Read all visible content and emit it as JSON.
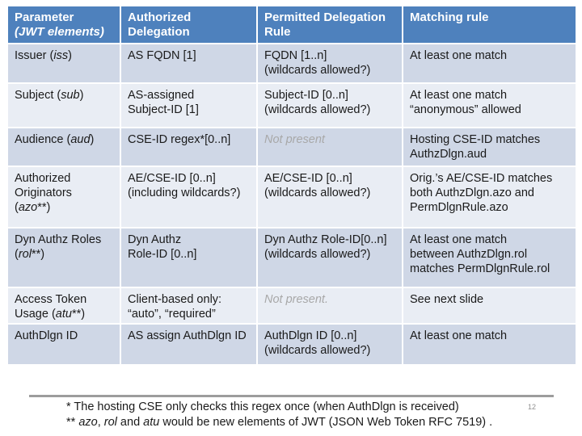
{
  "colors": {
    "header_bg": "#4E81BD",
    "header_text": "#FFFFFF",
    "band_dark": "#CFD7E6",
    "band_light": "#E9EDF4",
    "muted_text": "#A8A8A8",
    "divider_line": "#9C9C9C",
    "body_text": "#1A1A1A"
  },
  "table": {
    "columns": [
      {
        "segments": [
          {
            "t": "Parameter\n"
          },
          {
            "t": "(JWT elements)",
            "i": true
          }
        ]
      },
      {
        "segments": [
          {
            "t": "Authorized\nDelegation"
          }
        ]
      },
      {
        "segments": [
          {
            "t": "Permitted Delegation\nRule"
          }
        ]
      },
      {
        "segments": [
          {
            "t": "Matching rule"
          }
        ]
      }
    ],
    "rows": [
      {
        "cells": [
          {
            "segments": [
              {
                "t": "Issuer ("
              },
              {
                "t": "iss",
                "i": true
              },
              {
                "t": ")"
              }
            ]
          },
          {
            "segments": [
              {
                "t": "AS FQDN [1]"
              }
            ]
          },
          {
            "segments": [
              {
                "t": "FQDN [1..n]\n(wildcards allowed?)"
              }
            ]
          },
          {
            "segments": [
              {
                "t": "At least one match"
              }
            ]
          }
        ]
      },
      {
        "cells": [
          {
            "segments": [
              {
                "t": "Subject  ("
              },
              {
                "t": "sub",
                "i": true
              },
              {
                "t": ")"
              }
            ]
          },
          {
            "segments": [
              {
                "t": "AS-assigned\nSubject-ID [1]"
              }
            ]
          },
          {
            "segments": [
              {
                "t": "Subject-ID [0..n]\n(wildcards allowed?)"
              }
            ]
          },
          {
            "segments": [
              {
                "t": "At least one match\n“anonymous” allowed"
              }
            ]
          }
        ]
      },
      {
        "cells": [
          {
            "segments": [
              {
                "t": "Audience ("
              },
              {
                "t": "aud",
                "i": true
              },
              {
                "t": ")"
              }
            ]
          },
          {
            "segments": [
              {
                "t": "CSE-ID regex*[0..n]"
              }
            ]
          },
          {
            "segments": [
              {
                "t": "Not present"
              }
            ],
            "muted": true
          },
          {
            "segments": [
              {
                "t": "Hosting CSE-ID matches\nAuthzDlgn.aud"
              }
            ]
          }
        ]
      },
      {
        "cells": [
          {
            "segments": [
              {
                "t": "Authorized\nOriginators\n("
              },
              {
                "t": "azo",
                "i": true
              },
              {
                "t": "**)"
              }
            ]
          },
          {
            "segments": [
              {
                "t": "AE/CSE-ID [0..n]\n(including wildcards?)"
              }
            ]
          },
          {
            "segments": [
              {
                "t": "AE/CSE-ID [0..n]\n(wildcards allowed?)"
              }
            ]
          },
          {
            "segments": [
              {
                "t": "Orig.’s AE/CSE-ID matches\nboth AuthzDlgn.azo and\nPermDlgnRule.azo"
              }
            ]
          }
        ]
      },
      {
        "cells": [
          {
            "segments": [
              {
                "t": "Dyn Authz Roles\n("
              },
              {
                "t": "rol",
                "i": true
              },
              {
                "t": "**)"
              }
            ]
          },
          {
            "segments": [
              {
                "t": "Dyn Authz\nRole-ID [0..n]"
              }
            ]
          },
          {
            "segments": [
              {
                "t": "Dyn Authz Role-ID[0..n]\n(wildcards allowed?)"
              }
            ]
          },
          {
            "segments": [
              {
                "t": "At least one match\nbetween AuthzDlgn.rol\nmatches PermDlgnRule.rol"
              }
            ]
          }
        ]
      },
      {
        "cells": [
          {
            "segments": [
              {
                "t": "Access Token\nUsage ("
              },
              {
                "t": "atu",
                "i": true
              },
              {
                "t": "**)"
              }
            ]
          },
          {
            "segments": [
              {
                "t": "Client-based only:\n“auto”, “required”"
              }
            ]
          },
          {
            "segments": [
              {
                "t": "Not present."
              }
            ],
            "muted": true
          },
          {
            "segments": [
              {
                "t": "See next slide"
              }
            ]
          }
        ]
      },
      {
        "cells": [
          {
            "segments": [
              {
                "t": "AuthDlgn ID"
              }
            ]
          },
          {
            "segments": [
              {
                "t": "AS assign AuthDlgn ID"
              }
            ]
          },
          {
            "segments": [
              {
                "t": "AuthDlgn ID [0..n]\n(wildcards allowed?)"
              }
            ]
          },
          {
            "segments": [
              {
                "t": "At least one match"
              }
            ]
          }
        ]
      }
    ]
  },
  "footer": {
    "notes": [
      {
        "segments": [
          {
            "t": "* The hosting CSE only checks this regex once (when AuthDlgn is received)"
          }
        ]
      },
      {
        "segments": [
          {
            "t": "** "
          },
          {
            "t": "azo",
            "i": true
          },
          {
            "t": ", "
          },
          {
            "t": "rol",
            "i": true
          },
          {
            "t": " and "
          },
          {
            "t": "atu",
            "i": true
          },
          {
            "t": " would be new elements of JWT (JSON Web Token RFC 7519) ."
          }
        ]
      }
    ],
    "page_number": "12"
  }
}
